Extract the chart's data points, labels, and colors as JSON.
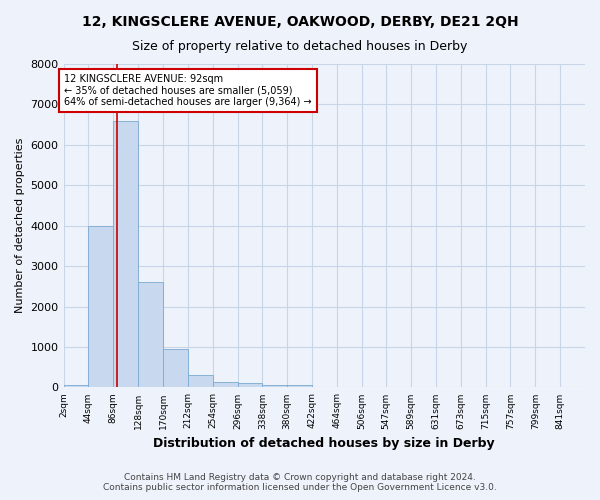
{
  "title1": "12, KINGSCLERE AVENUE, OAKWOOD, DERBY, DE21 2QH",
  "title2": "Size of property relative to detached houses in Derby",
  "xlabel": "Distribution of detached houses by size in Derby",
  "ylabel": "Number of detached properties",
  "footnote1": "Contains HM Land Registry data © Crown copyright and database right 2024.",
  "footnote2": "Contains public sector information licensed under the Open Government Licence v3.0.",
  "annotation_line1": "12 KINGSCLERE AVENUE: 92sqm",
  "annotation_line2": "← 35% of detached houses are smaller (5,059)",
  "annotation_line3": "64% of semi-detached houses are larger (9,364) →",
  "property_size": 92,
  "bin_edges": [
    2,
    44,
    86,
    128,
    170,
    212,
    254,
    296,
    338,
    380,
    422,
    464,
    506,
    547,
    589,
    631,
    673,
    715,
    757,
    799,
    841
  ],
  "bar_heights": [
    60,
    4000,
    6600,
    2600,
    950,
    300,
    130,
    100,
    70,
    60,
    10,
    5,
    3,
    2,
    2,
    1,
    1,
    1,
    1,
    1
  ],
  "bar_color": "#c8d8ee",
  "bar_edgecolor": "#7aaad0",
  "property_line_color": "#cc0000",
  "annotation_box_edgecolor": "#cc0000",
  "annotation_box_facecolor": "#ffffff",
  "ylim": [
    0,
    8000
  ],
  "yticks": [
    0,
    1000,
    2000,
    3000,
    4000,
    5000,
    6000,
    7000,
    8000
  ],
  "grid_color": "#c8d4e8",
  "background_color": "#eef2fa",
  "title1_fontsize": 10,
  "title2_fontsize": 9,
  "ylabel_fontsize": 8,
  "xlabel_fontsize": 9,
  "footnote_fontsize": 6.5,
  "ytick_fontsize": 8,
  "xtick_fontsize": 6.5,
  "annotation_fontsize": 7
}
